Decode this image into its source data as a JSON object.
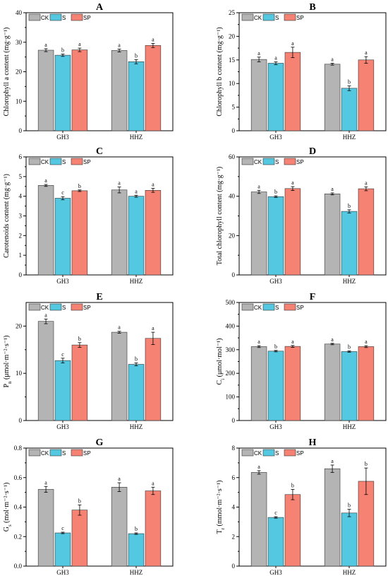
{
  "colors": {
    "CK": "#b4b4b4",
    "S": "#55c8e1",
    "SP": "#f58273",
    "axis": "#000000"
  },
  "chart_data": [
    {
      "panel": "A",
      "type": "bar",
      "ylabel": "Chlorophyll a content (mg·g⁻¹)",
      "ylim": [
        0,
        40
      ],
      "yticks": [
        0,
        10,
        20,
        30,
        40
      ],
      "categories": [
        "GH3",
        "HHZ"
      ],
      "series": [
        {
          "name": "CK",
          "values": [
            27.3,
            27.2
          ],
          "errors": [
            0.5,
            0.5
          ],
          "letters": [
            "a",
            "a"
          ]
        },
        {
          "name": "S",
          "values": [
            25.6,
            23.4
          ],
          "errors": [
            0.4,
            0.7
          ],
          "letters": [
            "b",
            "b"
          ]
        },
        {
          "name": "SP",
          "values": [
            27.4,
            28.9
          ],
          "errors": [
            0.6,
            0.7
          ],
          "letters": [
            "a",
            "a"
          ]
        }
      ]
    },
    {
      "panel": "B",
      "type": "bar",
      "ylabel": "Chlorophyll b content (mg·g⁻¹)",
      "ylim": [
        0,
        25
      ],
      "yticks": [
        0,
        5,
        10,
        15,
        20,
        25
      ],
      "categories": [
        "GH3",
        "HHZ"
      ],
      "series": [
        {
          "name": "CK",
          "values": [
            15.1,
            14.1
          ],
          "errors": [
            0.5,
            0.2
          ],
          "letters": [
            "a",
            "a"
          ]
        },
        {
          "name": "S",
          "values": [
            14.3,
            9.0
          ],
          "errors": [
            0.3,
            0.5
          ],
          "letters": [
            "a",
            "b"
          ]
        },
        {
          "name": "SP",
          "values": [
            16.6,
            15.0
          ],
          "errors": [
            1.1,
            0.7
          ],
          "letters": [
            "a",
            "a"
          ]
        }
      ]
    },
    {
      "panel": "C",
      "type": "bar",
      "ylabel": "Carotenoids content (mg·g⁻¹)",
      "ylim": [
        0,
        6
      ],
      "yticks": [
        0,
        1,
        2,
        3,
        4,
        5,
        6
      ],
      "categories": [
        "GH3",
        "HHZ"
      ],
      "series": [
        {
          "name": "CK",
          "values": [
            4.55,
            4.32
          ],
          "errors": [
            0.05,
            0.15
          ],
          "letters": [
            "a",
            "a"
          ]
        },
        {
          "name": "S",
          "values": [
            3.9,
            4.0
          ],
          "errors": [
            0.08,
            0.05
          ],
          "letters": [
            "c",
            "a"
          ]
        },
        {
          "name": "SP",
          "values": [
            4.28,
            4.3
          ],
          "errors": [
            0.04,
            0.1
          ],
          "letters": [
            "b",
            "a"
          ]
        }
      ]
    },
    {
      "panel": "D",
      "type": "bar",
      "ylabel": "Total chlorophyll content (mg·g⁻¹)",
      "ylim": [
        0,
        60
      ],
      "yticks": [
        0,
        20,
        40,
        60
      ],
      "categories": [
        "GH3",
        "HHZ"
      ],
      "series": [
        {
          "name": "CK",
          "values": [
            42.2,
            41.2
          ],
          "errors": [
            0.8,
            0.5
          ],
          "letters": [
            "a",
            "a"
          ]
        },
        {
          "name": "S",
          "values": [
            39.8,
            32.3
          ],
          "errors": [
            0.4,
            0.8
          ],
          "letters": [
            "b",
            "b"
          ]
        },
        {
          "name": "SP",
          "values": [
            43.9,
            43.8
          ],
          "errors": [
            1.0,
            1.0
          ],
          "letters": [
            "a",
            "a"
          ]
        }
      ]
    },
    {
      "panel": "E",
      "type": "bar",
      "ylabel_main": "P",
      "ylabel_sub": "n",
      "ylabel_rest": " (μmol·m⁻²·s⁻¹)",
      "ylim": [
        0,
        25
      ],
      "yticks": [
        0,
        10,
        20
      ],
      "categories": [
        "GH3",
        "HHZ"
      ],
      "series": [
        {
          "name": "CK",
          "values": [
            21.0,
            18.7
          ],
          "errors": [
            0.5,
            0.2
          ],
          "letters": [
            "a",
            "a"
          ]
        },
        {
          "name": "S",
          "values": [
            12.7,
            11.9
          ],
          "errors": [
            0.5,
            0.3
          ],
          "letters": [
            "c",
            "b"
          ]
        },
        {
          "name": "SP",
          "values": [
            16.0,
            17.4
          ],
          "errors": [
            0.5,
            1.3
          ],
          "letters": [
            "b",
            "a"
          ]
        }
      ]
    },
    {
      "panel": "F",
      "type": "bar",
      "ylabel_main": "C",
      "ylabel_sub": "i",
      "ylabel_rest": " (μmol·mol⁻¹)",
      "ylim": [
        0,
        500
      ],
      "yticks": [
        0,
        100,
        200,
        300,
        400,
        500
      ],
      "categories": [
        "GH3",
        "HHZ"
      ],
      "series": [
        {
          "name": "CK",
          "values": [
            313,
            324
          ],
          "errors": [
            4,
            3
          ],
          "letters": [
            "a",
            "a"
          ]
        },
        {
          "name": "S",
          "values": [
            294,
            292
          ],
          "errors": [
            3,
            3
          ],
          "letters": [
            "b",
            "b"
          ]
        },
        {
          "name": "SP",
          "values": [
            314,
            313
          ],
          "errors": [
            4,
            4
          ],
          "letters": [
            "a",
            "a"
          ]
        }
      ]
    },
    {
      "panel": "G",
      "type": "bar",
      "ylabel_main": "G",
      "ylabel_sub": "s",
      "ylabel_rest": " (mol·m⁻²·s⁻¹)",
      "ylim": [
        0,
        0.8
      ],
      "yticks": [
        0.0,
        0.2,
        0.4,
        0.6,
        0.8
      ],
      "categories": [
        "GH3",
        "HHZ"
      ],
      "series": [
        {
          "name": "CK",
          "values": [
            0.52,
            0.535
          ],
          "errors": [
            0.02,
            0.03
          ],
          "letters": [
            "a",
            "a"
          ]
        },
        {
          "name": "S",
          "values": [
            0.225,
            0.22
          ],
          "errors": [
            0.005,
            0.005
          ],
          "letters": [
            "c",
            "b"
          ]
        },
        {
          "name": "SP",
          "values": [
            0.38,
            0.51
          ],
          "errors": [
            0.035,
            0.025
          ],
          "letters": [
            "b",
            "a"
          ]
        }
      ]
    },
    {
      "panel": "H",
      "type": "bar",
      "ylabel_main": "T",
      "ylabel_sub": "r",
      "ylabel_rest": " (mmol·m⁻²·s⁻¹)",
      "ylim": [
        0,
        8
      ],
      "yticks": [
        0,
        2,
        4,
        6,
        8
      ],
      "categories": [
        "GH3",
        "HHZ"
      ],
      "series": [
        {
          "name": "CK",
          "values": [
            6.35,
            6.6
          ],
          "errors": [
            0.12,
            0.25
          ],
          "letters": [
            "a",
            "a"
          ]
        },
        {
          "name": "S",
          "values": [
            3.3,
            3.6
          ],
          "errors": [
            0.05,
            0.25
          ],
          "letters": [
            "c",
            "b"
          ]
        },
        {
          "name": "SP",
          "values": [
            4.85,
            5.75
          ],
          "errors": [
            0.35,
            0.9
          ],
          "letters": [
            "b",
            "b"
          ]
        }
      ]
    }
  ]
}
